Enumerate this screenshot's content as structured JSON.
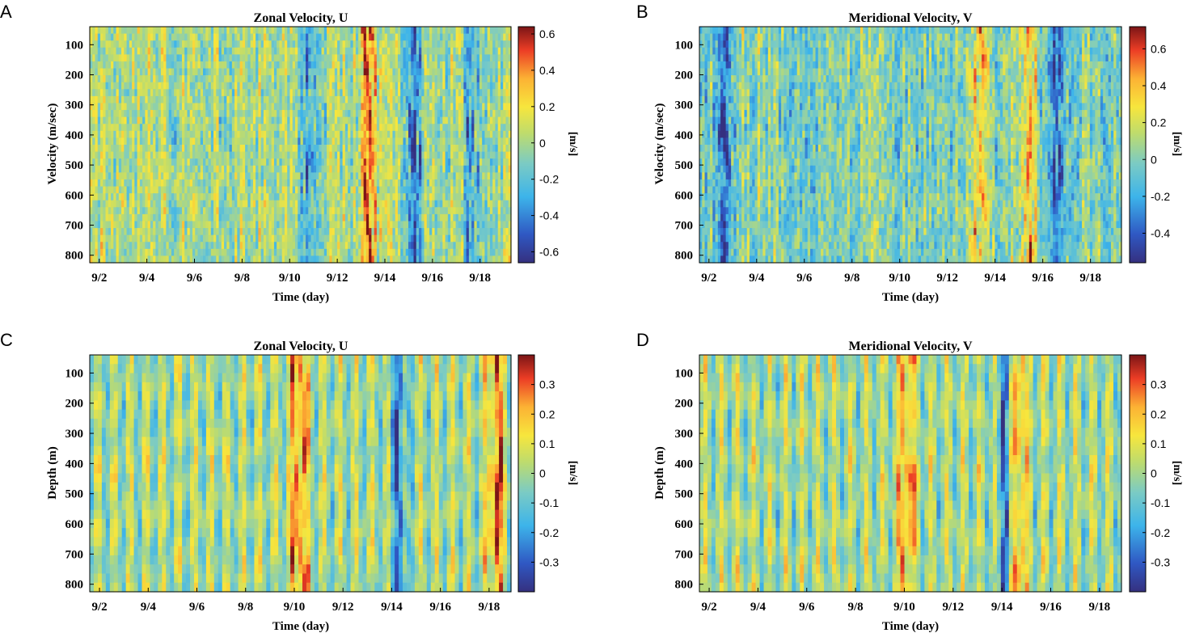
{
  "chart_data": [
    {
      "panel": "A",
      "type": "heatmap",
      "title": "Zonal Velocity, U",
      "xlabel": "Time (day)",
      "ylabel": "Velocity (m/sec)",
      "x_ticks": [
        "9/2",
        "9/4",
        "9/6",
        "9/8",
        "9/10",
        "9/12",
        "9/14",
        "9/16",
        "9/18"
      ],
      "xlim": [
        1.6,
        19.3
      ],
      "x_tick_values": [
        2,
        4,
        6,
        8,
        10,
        12,
        14,
        16,
        18
      ],
      "y_ticks": [
        "100",
        "200",
        "300",
        "400",
        "500",
        "600",
        "700",
        "800"
      ],
      "y_tick_values": [
        100,
        200,
        300,
        400,
        500,
        600,
        700,
        800
      ],
      "ylim": [
        40,
        825
      ],
      "y_reversed": true,
      "colorbar": {
        "label": "[m/s]",
        "range": [
          -0.66,
          0.64
        ],
        "ticks": [
          "-0.6",
          "-0.4",
          "-0.2",
          "0",
          "0.2",
          "0.4",
          "0.6"
        ],
        "tick_values": [
          -0.6,
          -0.4,
          -0.2,
          0,
          0.2,
          0.4,
          0.6
        ]
      },
      "features": [
        {
          "x": 15.2,
          "value": -0.6,
          "note": "strong westward band 9/15"
        },
        {
          "x": 10.8,
          "value": -0.45,
          "note": "westward band near 9/11"
        },
        {
          "x": 13.3,
          "value": 0.45,
          "note": "eastward patches 9/13"
        },
        {
          "x": 17.6,
          "value": -0.35,
          "note": "westward band 9/17-9/18"
        }
      ]
    },
    {
      "panel": "B",
      "type": "heatmap",
      "title": "Meridional Velocity, V",
      "xlabel": "Time (day)",
      "ylabel": "Velocity (m/sec)",
      "x_ticks": [
        "9/2",
        "9/4",
        "9/6",
        "9/8",
        "9/10",
        "9/12",
        "9/14",
        "9/16",
        "9/18"
      ],
      "xlim": [
        1.6,
        19.3
      ],
      "x_tick_values": [
        2,
        4,
        6,
        8,
        10,
        12,
        14,
        16,
        18
      ],
      "y_ticks": [
        "100",
        "200",
        "300",
        "400",
        "500",
        "600",
        "700",
        "800"
      ],
      "y_tick_values": [
        100,
        200,
        300,
        400,
        500,
        600,
        700,
        800
      ],
      "ylim": [
        40,
        825
      ],
      "y_reversed": true,
      "colorbar": {
        "label": "[m/s]",
        "range": [
          -0.56,
          0.72
        ],
        "ticks": [
          "-0.4",
          "-0.2",
          "0",
          "0.2",
          "0.4",
          "0.6"
        ],
        "tick_values": [
          -0.4,
          -0.2,
          0,
          0.2,
          0.4,
          0.6
        ]
      },
      "features": [
        {
          "x": 13.4,
          "value": 0.45,
          "note": "northward flow 9/13-9/14"
        },
        {
          "x": 15.4,
          "value": 0.5,
          "note": "northward band 9/15"
        },
        {
          "x": 16.6,
          "value": -0.4,
          "note": "southward band 9/16-9/17"
        },
        {
          "x": 2.6,
          "value": -0.4,
          "note": "southward band 9/2-9/3"
        }
      ]
    },
    {
      "panel": "C",
      "type": "heatmap",
      "title": "Zonal Velocity, U",
      "xlabel": "Time (day)",
      "ylabel": "Depth (m)",
      "x_ticks": [
        "9/2",
        "9/4",
        "9/6",
        "9/8",
        "9/10",
        "9/12",
        "9/14",
        "9/16",
        "9/18"
      ],
      "xlim": [
        1.6,
        18.9
      ],
      "x_tick_values": [
        2,
        4,
        6,
        8,
        10,
        12,
        14,
        16,
        18
      ],
      "y_ticks": [
        "100",
        "200",
        "300",
        "400",
        "500",
        "600",
        "700",
        "800"
      ],
      "y_tick_values": [
        100,
        200,
        300,
        400,
        500,
        600,
        700,
        800
      ],
      "ylim": [
        40,
        825
      ],
      "y_reversed": true,
      "colorbar": {
        "label": "[m/s]",
        "range": [
          -0.4,
          0.4
        ],
        "ticks": [
          "-0.3",
          "-0.2",
          "-0.1",
          "0",
          "0.1",
          "0.2",
          "0.3"
        ],
        "tick_values": [
          -0.3,
          -0.2,
          -0.1,
          0,
          0.1,
          0.2,
          0.3
        ]
      },
      "features": [
        {
          "x": 10.2,
          "value": 0.35,
          "note": "eastward column 9/10"
        },
        {
          "x": 14.3,
          "value": -0.3,
          "note": "westward column 9/14"
        },
        {
          "x": 18.3,
          "value": 0.35,
          "note": "eastward column 9/18"
        }
      ]
    },
    {
      "panel": "D",
      "type": "heatmap",
      "title": "Meridional Velocity, V",
      "xlabel": "Time (day)",
      "ylabel": "Depth (m)",
      "x_ticks": [
        "9/2",
        "9/4",
        "9/6",
        "9/8",
        "9/10",
        "9/12",
        "9/14",
        "9/16",
        "9/18"
      ],
      "xlim": [
        1.6,
        18.9
      ],
      "x_tick_values": [
        2,
        4,
        6,
        8,
        10,
        12,
        14,
        16,
        18
      ],
      "y_ticks": [
        "100",
        "200",
        "300",
        "400",
        "500",
        "600",
        "700",
        "800"
      ],
      "y_tick_values": [
        100,
        200,
        300,
        400,
        500,
        600,
        700,
        800
      ],
      "ylim": [
        40,
        825
      ],
      "y_reversed": true,
      "colorbar": {
        "label": "[m/s]",
        "range": [
          -0.4,
          0.4
        ],
        "ticks": [
          "-0.3",
          "-0.2",
          "-0.1",
          "0",
          "0.1",
          "0.2",
          "0.3"
        ],
        "tick_values": [
          -0.3,
          -0.2,
          -0.1,
          0,
          0.1,
          0.2,
          0.3
        ]
      },
      "features": [
        {
          "x": 14.2,
          "value": -0.35,
          "note": "southward column 9/14"
        },
        {
          "x": 14.6,
          "value": 0.35,
          "note": "northward column 9/14-9/15"
        },
        {
          "x": 10.1,
          "value": 0.3,
          "note": "northward column 9/10"
        }
      ]
    }
  ]
}
